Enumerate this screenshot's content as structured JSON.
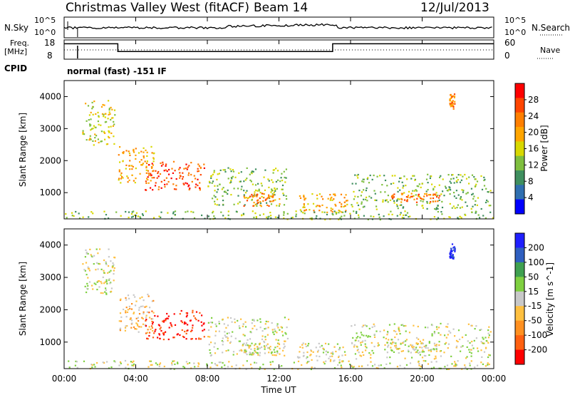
{
  "header": {
    "station": "Christmas Valley West (fitACF)",
    "beam": "Beam 14",
    "date": "12/Jul/2013"
  },
  "status_panel": {
    "nsky_label": "N.Sky",
    "nsearch_label": "N.Search",
    "freq_label_1": "Freq.",
    "freq_label_2": "[MHz]",
    "nave_label": "Nave",
    "cpid_label": "CPID",
    "cpid_text": "normal (fast) -151 IF",
    "noise_ticks_left": [
      "10^5",
      "10^0"
    ],
    "noise_ticks_right": [
      "10^5",
      "10^0"
    ],
    "freq_ticks": [
      "18",
      "8"
    ],
    "nave_ticks": [
      "60",
      "0"
    ]
  },
  "power_panel": {
    "ylabel": "Slant Range [km]",
    "yticks": [
      "4000",
      "3000",
      "2000",
      "1000"
    ],
    "colorbar_label": "Power [dB]",
    "colorbar_ticks": [
      "28",
      "24",
      "20",
      "16",
      "12",
      "8",
      "4"
    ],
    "colors": [
      "#ff0000",
      "#ff4500",
      "#ff7f00",
      "#ffa500",
      "#d8d800",
      "#7fbf3f",
      "#3f8f5f",
      "#2f6fb0",
      "#0000ff"
    ]
  },
  "velocity_panel": {
    "ylabel": "Slant Range [km]",
    "yticks": [
      "4000",
      "3000",
      "2000",
      "1000"
    ],
    "colorbar_label": "Velocity [m s^-1]",
    "colorbar_ticks": [
      "200",
      "100",
      "50",
      "15",
      "-15",
      "-50",
      "-100",
      "-200"
    ],
    "colors": [
      "#1f1fff",
      "#2f5fc0",
      "#3fa050",
      "#7fd040",
      "#c8c8c8",
      "#ffc040",
      "#ff9020",
      "#ff6010",
      "#ff0000"
    ]
  },
  "xaxis": {
    "ticks": [
      "00:00",
      "04:00",
      "08:00",
      "12:00",
      "16:00",
      "20:00",
      "00:00"
    ],
    "label": "Time UT"
  },
  "chart_data": {
    "type": "heatmap",
    "title": "Christmas Valley West (fitACF)",
    "xlabel": "Time UT",
    "ylabel": "Slant Range [km]",
    "xlim": [
      0,
      24
    ],
    "ylim": [
      180,
      4500
    ],
    "power_db_range": [
      0,
      30
    ],
    "velocity_range": [
      -250,
      250
    ],
    "frequency_steps": [
      {
        "start_h": 0,
        "end_h": 3,
        "freq_mhz": 16
      },
      {
        "start_h": 3,
        "end_h": 15,
        "freq_mhz": 12
      },
      {
        "start_h": 15,
        "end_h": 24,
        "freq_mhz": 16
      }
    ],
    "echo_regions": [
      {
        "start_h": 1.0,
        "end_h": 2.8,
        "range_km": [
          2500,
          3900
        ],
        "power_db": 16,
        "velocity": 0
      },
      {
        "start_h": 3.0,
        "end_h": 5.0,
        "range_km": [
          1300,
          2500
        ],
        "power_db": 20,
        "velocity": -60
      },
      {
        "start_h": 4.5,
        "end_h": 7.8,
        "range_km": [
          1100,
          2000
        ],
        "power_db": 26,
        "velocity": -220
      },
      {
        "start_h": 8.0,
        "end_h": 12.5,
        "range_km": [
          600,
          1800
        ],
        "power_db": 12,
        "velocity": -10
      },
      {
        "start_h": 10.0,
        "end_h": 12.0,
        "range_km": [
          600,
          1000
        ],
        "power_db": 24,
        "velocity": 0
      },
      {
        "start_h": 13.0,
        "end_h": 15.8,
        "range_km": [
          400,
          1000
        ],
        "power_db": 20,
        "velocity": 0
      },
      {
        "start_h": 16.0,
        "end_h": 23.8,
        "range_km": [
          500,
          1600
        ],
        "power_db": 12,
        "velocity": 0
      },
      {
        "start_h": 18.0,
        "end_h": 21.0,
        "range_km": [
          700,
          1000
        ],
        "power_db": 24,
        "velocity": 0
      },
      {
        "start_h": 0.0,
        "end_h": 24.0,
        "range_km": [
          180,
          450
        ],
        "power_db": 10,
        "velocity": 20
      },
      {
        "start_h": 21.5,
        "end_h": 21.8,
        "range_km": [
          3600,
          4100
        ],
        "power_db": 24,
        "velocity": 220
      }
    ]
  }
}
